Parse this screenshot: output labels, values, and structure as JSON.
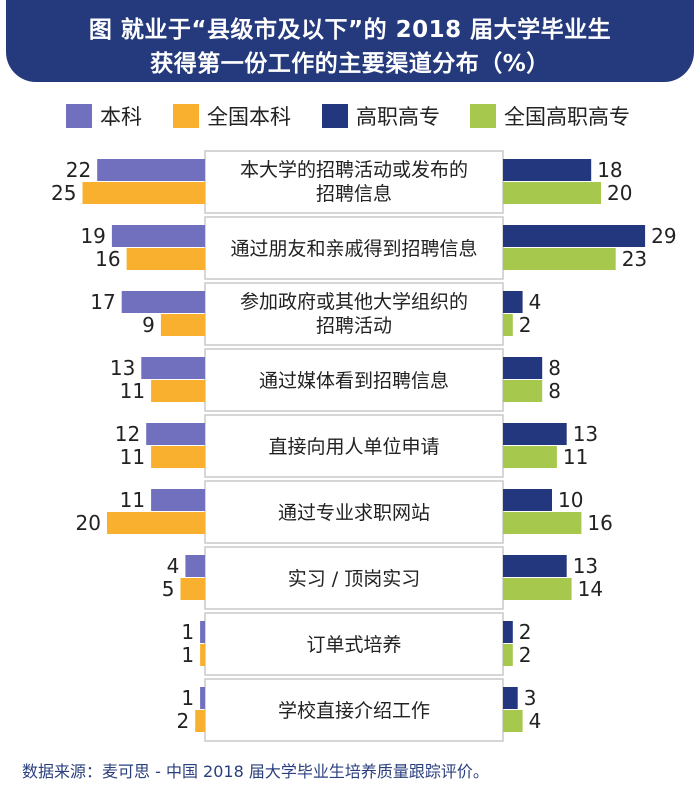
{
  "title": {
    "line1": "图 就业于“县级市及以下”的 2018 届大学毕业生",
    "line2": "获得第一份工作的主要渠道分布（%）"
  },
  "colors": {
    "banner": "#243a7c",
    "benke": "#7070bf",
    "quanguo_benke": "#f9b02e",
    "gaozhi": "#23377f",
    "quanguo_gaozhi": "#a6c94d",
    "source_text": "#2a3f7e"
  },
  "legend": [
    {
      "label": "本科",
      "color": "#7070bf"
    },
    {
      "label": "全国本科",
      "color": "#f9b02e"
    },
    {
      "label": "高职高专",
      "color": "#23377f"
    },
    {
      "label": "全国高职高专",
      "color": "#a6c94d"
    }
  ],
  "chart_data": {
    "type": "bar",
    "orientation": "horizontal-butterfly",
    "categories": [
      [
        "本大学的招聘活动或发布的",
        "招聘信息"
      ],
      [
        "通过朋友和亲戚得到招聘信息"
      ],
      [
        "参加政府或其他大学组织的",
        "招聘活动"
      ],
      [
        "通过媒体看到招聘信息"
      ],
      [
        "直接向用人单位申请"
      ],
      [
        "通过专业求职网站"
      ],
      [
        "实习 / 顶岗实习"
      ],
      [
        "订单式培养"
      ],
      [
        "学校直接介绍工作"
      ]
    ],
    "series": [
      {
        "name": "本科",
        "side": "left",
        "values": [
          22,
          19,
          17,
          13,
          12,
          11,
          4,
          1,
          1
        ]
      },
      {
        "name": "全国本科",
        "side": "left",
        "values": [
          25,
          16,
          9,
          11,
          11,
          20,
          5,
          1,
          2
        ]
      },
      {
        "name": "高职高专",
        "side": "right",
        "values": [
          18,
          29,
          4,
          8,
          13,
          10,
          13,
          2,
          3
        ]
      },
      {
        "name": "全国高职高专",
        "side": "right",
        "values": [
          20,
          23,
          2,
          8,
          11,
          16,
          14,
          2,
          4
        ]
      }
    ]
  },
  "source": "数据来源：麦可思 - 中国 2018 届大学毕业生培养质量跟踪评价。"
}
